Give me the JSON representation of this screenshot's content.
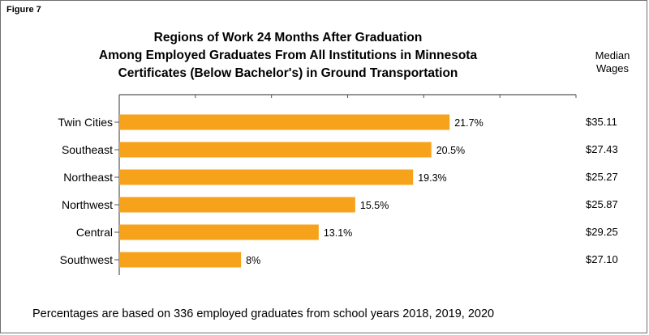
{
  "figure_label": "Figure 7",
  "footnote": "Percentages are based on 336 employed graduates from school years 2018, 2019, 2020",
  "colors": {
    "bar": "#f7a21b",
    "axis": "#555555"
  },
  "chart_data": {
    "type": "bar",
    "orientation": "horizontal",
    "title": [
      "Regions of Work 24 Months After Graduation",
      "Among Employed Graduates From All Institutions in Minnesota",
      "Certificates (Below Bachelor's) in Ground Transportation"
    ],
    "categories": [
      "Twin Cities",
      "Southeast",
      "Northeast",
      "Northwest",
      "Central",
      "Southwest"
    ],
    "values": [
      21.7,
      20.5,
      19.3,
      15.5,
      13.1,
      8
    ],
    "value_labels": [
      "21.7%",
      "20.5%",
      "19.3%",
      "15.5%",
      "13.1%",
      "8%"
    ],
    "xlim": [
      0,
      30
    ],
    "grid": false,
    "median_wages_header": [
      "Median",
      "Wages"
    ],
    "median_wages": [
      "$35.11",
      "$27.43",
      "$25.27",
      "$25.87",
      "$29.25",
      "$27.10"
    ]
  }
}
